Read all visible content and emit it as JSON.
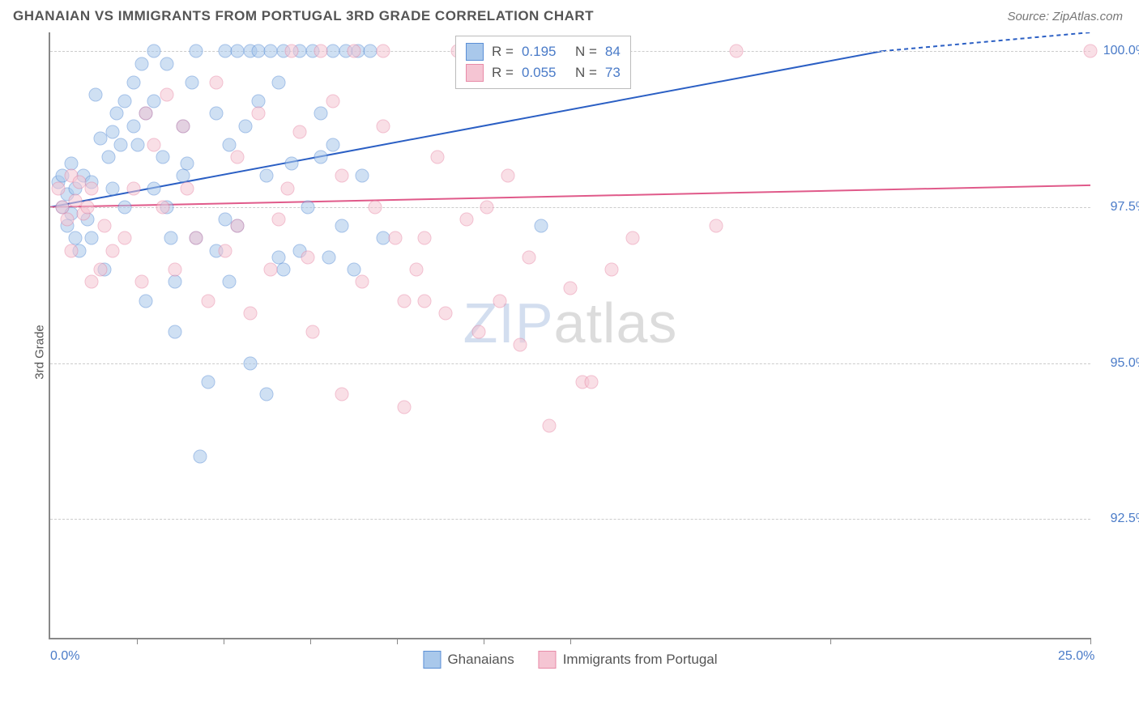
{
  "header": {
    "title": "GHANAIAN VS IMMIGRANTS FROM PORTUGAL 3RD GRADE CORRELATION CHART",
    "source": "Source: ZipAtlas.com"
  },
  "chart": {
    "type": "scatter",
    "y_axis_label": "3rd Grade",
    "xlim": [
      0,
      25
    ],
    "ylim": [
      90.6,
      100.3
    ],
    "x_ticks": [
      0,
      25
    ],
    "x_tick_labels": [
      "0.0%",
      "25.0%"
    ],
    "x_minor_ticks": [
      2.08,
      4.17,
      6.25,
      8.33,
      10.42,
      12.5,
      18.75,
      25
    ],
    "y_ticks": [
      92.5,
      95.0,
      97.5,
      100.0
    ],
    "y_tick_labels": [
      "92.5%",
      "95.0%",
      "97.5%",
      "100.0%"
    ],
    "grid_color": "#cccccc",
    "background_color": "#ffffff",
    "axis_color": "#888888",
    "marker_radius": 8.5,
    "marker_opacity": 0.55,
    "series": [
      {
        "name": "Ghanaians",
        "color_fill": "#a9c8eb",
        "color_stroke": "#5b8fd6",
        "r_value": "0.195",
        "n_value": "84",
        "trend": {
          "x1": 0,
          "y1": 97.5,
          "x2": 20,
          "y2": 100.0,
          "x2_dash": 25,
          "y2_dash": 100.5,
          "color": "#2b5fc4",
          "width": 2
        },
        "points": [
          [
            0.2,
            97.9
          ],
          [
            0.3,
            98.0
          ],
          [
            0.4,
            97.7
          ],
          [
            0.5,
            98.2
          ],
          [
            0.6,
            97.8
          ],
          [
            0.3,
            97.5
          ],
          [
            0.5,
            97.4
          ],
          [
            0.8,
            98.0
          ],
          [
            0.9,
            97.3
          ],
          [
            1.0,
            97.9
          ],
          [
            0.4,
            97.2
          ],
          [
            0.6,
            97.0
          ],
          [
            1.5,
            98.7
          ],
          [
            1.6,
            99.0
          ],
          [
            1.7,
            98.5
          ],
          [
            1.8,
            99.2
          ],
          [
            2.0,
            98.8
          ],
          [
            1.4,
            98.3
          ],
          [
            1.2,
            98.6
          ],
          [
            2.0,
            99.5
          ],
          [
            2.2,
            99.8
          ],
          [
            2.1,
            98.5
          ],
          [
            2.5,
            100.0
          ],
          [
            2.3,
            99.0
          ],
          [
            2.5,
            99.2
          ],
          [
            2.7,
            98.3
          ],
          [
            2.8,
            99.8
          ],
          [
            3.0,
            95.5
          ],
          [
            2.9,
            97.0
          ],
          [
            3.2,
            98.0
          ],
          [
            3.2,
            98.8
          ],
          [
            3.4,
            99.5
          ],
          [
            3.5,
            100.0
          ],
          [
            3.3,
            98.2
          ],
          [
            3.8,
            94.7
          ],
          [
            4.0,
            99.0
          ],
          [
            4.2,
            97.3
          ],
          [
            4.2,
            100.0
          ],
          [
            4.0,
            96.8
          ],
          [
            4.5,
            100.0
          ],
          [
            4.3,
            98.5
          ],
          [
            4.8,
            100.0
          ],
          [
            4.5,
            97.2
          ],
          [
            5.0,
            99.2
          ],
          [
            5.0,
            100.0
          ],
          [
            4.8,
            95.0
          ],
          [
            5.2,
            98.0
          ],
          [
            5.3,
            100.0
          ],
          [
            5.2,
            94.5
          ],
          [
            5.5,
            96.7
          ],
          [
            5.6,
            100.0
          ],
          [
            5.8,
            98.2
          ],
          [
            6.0,
            100.0
          ],
          [
            5.6,
            96.5
          ],
          [
            6.2,
            97.5
          ],
          [
            6.3,
            100.0
          ],
          [
            6.5,
            99.0
          ],
          [
            6.7,
            96.7
          ],
          [
            6.5,
            98.3
          ],
          [
            6.8,
            100.0
          ],
          [
            7.0,
            97.2
          ],
          [
            7.1,
            100.0
          ],
          [
            7.3,
            96.5
          ],
          [
            7.4,
            100.0
          ],
          [
            7.5,
            98.0
          ],
          [
            7.7,
            100.0
          ],
          [
            8.0,
            97.0
          ],
          [
            1.0,
            97.0
          ],
          [
            1.3,
            96.5
          ],
          [
            1.8,
            97.5
          ],
          [
            0.7,
            96.8
          ],
          [
            2.5,
            97.8
          ],
          [
            3.0,
            96.3
          ],
          [
            3.6,
            93.5
          ],
          [
            11.8,
            97.2
          ],
          [
            1.1,
            99.3
          ],
          [
            1.5,
            97.8
          ],
          [
            2.8,
            97.5
          ],
          [
            3.5,
            97.0
          ],
          [
            4.3,
            96.3
          ],
          [
            5.5,
            99.5
          ],
          [
            6.0,
            96.8
          ],
          [
            6.8,
            98.5
          ],
          [
            2.3,
            96.0
          ],
          [
            4.7,
            98.8
          ]
        ]
      },
      {
        "name": "Immigrants from Portugal",
        "color_fill": "#f5c5d3",
        "color_stroke": "#e88ba8",
        "r_value": "0.055",
        "n_value": "73",
        "trend": {
          "x1": 0,
          "y1": 97.5,
          "x2": 25,
          "y2": 97.85,
          "color": "#e05a8a",
          "width": 2
        },
        "points": [
          [
            0.2,
            97.8
          ],
          [
            0.3,
            97.5
          ],
          [
            0.5,
            98.0
          ],
          [
            0.4,
            97.3
          ],
          [
            0.7,
            97.9
          ],
          [
            0.6,
            97.6
          ],
          [
            0.8,
            97.4
          ],
          [
            1.0,
            97.8
          ],
          [
            0.9,
            97.5
          ],
          [
            1.2,
            96.5
          ],
          [
            1.5,
            96.8
          ],
          [
            1.3,
            97.2
          ],
          [
            2.0,
            97.8
          ],
          [
            2.3,
            99.0
          ],
          [
            2.5,
            98.5
          ],
          [
            2.8,
            99.3
          ],
          [
            3.0,
            96.5
          ],
          [
            3.2,
            98.8
          ],
          [
            3.5,
            97.0
          ],
          [
            4.0,
            99.5
          ],
          [
            4.2,
            96.8
          ],
          [
            4.5,
            97.2
          ],
          [
            5.0,
            99.0
          ],
          [
            5.3,
            96.5
          ],
          [
            5.5,
            97.3
          ],
          [
            5.8,
            100.0
          ],
          [
            6.0,
            98.7
          ],
          [
            6.2,
            96.7
          ],
          [
            6.5,
            100.0
          ],
          [
            6.8,
            99.2
          ],
          [
            7.0,
            98.0
          ],
          [
            7.3,
            100.0
          ],
          [
            7.5,
            96.3
          ],
          [
            7.8,
            97.5
          ],
          [
            8.0,
            100.0
          ],
          [
            8.3,
            97.0
          ],
          [
            8.5,
            96.0
          ],
          [
            8.5,
            94.3
          ],
          [
            8.8,
            96.5
          ],
          [
            9.0,
            96.0
          ],
          [
            9.3,
            98.3
          ],
          [
            9.8,
            100.0
          ],
          [
            10.0,
            97.3
          ],
          [
            9.5,
            95.8
          ],
          [
            10.3,
            95.5
          ],
          [
            10.5,
            97.5
          ],
          [
            10.8,
            96.0
          ],
          [
            11.0,
            98.0
          ],
          [
            11.5,
            96.7
          ],
          [
            12.0,
            94.0
          ],
          [
            12.5,
            96.2
          ],
          [
            12.8,
            94.7
          ],
          [
            13.0,
            94.7
          ],
          [
            16.5,
            100.0
          ],
          [
            16.0,
            97.2
          ],
          [
            25.0,
            100.0
          ],
          [
            1.8,
            97.0
          ],
          [
            2.2,
            96.3
          ],
          [
            3.8,
            96.0
          ],
          [
            4.8,
            95.8
          ],
          [
            6.3,
            95.5
          ],
          [
            7.0,
            94.5
          ],
          [
            0.5,
            96.8
          ],
          [
            1.0,
            96.3
          ],
          [
            2.7,
            97.5
          ],
          [
            3.3,
            97.8
          ],
          [
            4.5,
            98.3
          ],
          [
            5.7,
            97.8
          ],
          [
            8.0,
            98.8
          ],
          [
            9.0,
            97.0
          ],
          [
            11.3,
            95.3
          ],
          [
            13.5,
            96.5
          ],
          [
            14.0,
            97.0
          ]
        ]
      }
    ],
    "watermark": {
      "text_a": "ZIP",
      "text_b": "atlas"
    }
  },
  "bottom_legend": [
    {
      "label": "Ghanaians",
      "fill": "#a9c8eb",
      "stroke": "#5b8fd6"
    },
    {
      "label": "Immigrants from Portugal",
      "fill": "#f5c5d3",
      "stroke": "#e88ba8"
    }
  ]
}
